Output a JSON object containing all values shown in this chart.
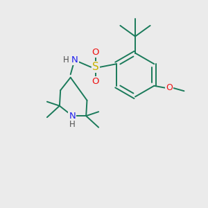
{
  "bg_color": "#ebebeb",
  "atom_colors": {
    "C": "#1a7a5a",
    "N": "#2020ee",
    "O": "#ee1010",
    "S": "#c8b400",
    "H": "#505050"
  },
  "bond_color": "#1a7a5a",
  "figsize": [
    3.0,
    3.0
  ],
  "dpi": 100
}
